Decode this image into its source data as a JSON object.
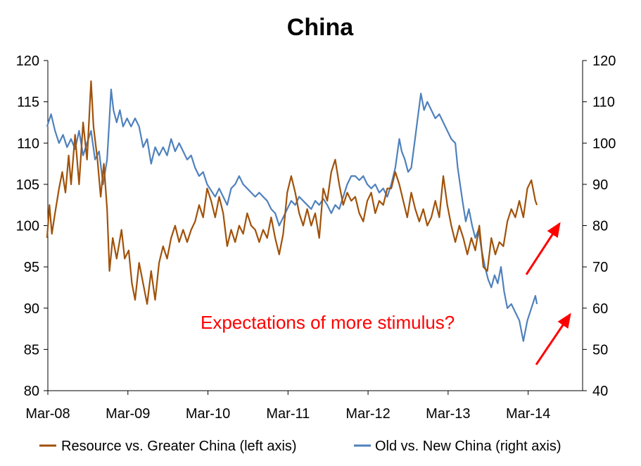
{
  "chart_data": {
    "type": "line",
    "title": "China",
    "x_labels": [
      "Mar-08",
      "Mar-09",
      "Mar-10",
      "Mar-11",
      "Mar-12",
      "Mar-13",
      "Mar-14"
    ],
    "y_left": {
      "min": 80,
      "max": 120,
      "step": 5,
      "ticks": [
        "80",
        "85",
        "90",
        "95",
        "100",
        "105",
        "110",
        "115",
        "120"
      ]
    },
    "y_right": {
      "min": 40,
      "max": 120,
      "step": 10,
      "ticks": [
        "40",
        "50",
        "60",
        "70",
        "80",
        "90",
        "100",
        "110",
        "120"
      ]
    },
    "grid": false,
    "legend_position": "bottom",
    "annotation": "Expectations of more stimulus?",
    "colors": {
      "resource": "#a0520a",
      "oldnew": "#4f81bd",
      "annotation": "#ff0000",
      "axis": "#000000"
    },
    "series": [
      {
        "name": "Resource vs. Greater China (left axis)",
        "axis": "left",
        "points": [
          [
            2008.15,
            98.5
          ],
          [
            2008.18,
            102.5
          ],
          [
            2008.21,
            99.0
          ],
          [
            2008.25,
            101.5
          ],
          [
            2008.3,
            104.5
          ],
          [
            2008.34,
            106.5
          ],
          [
            2008.38,
            104.0
          ],
          [
            2008.42,
            108.5
          ],
          [
            2008.45,
            105.0
          ],
          [
            2008.5,
            111.0
          ],
          [
            2008.55,
            105.0
          ],
          [
            2008.6,
            112.5
          ],
          [
            2008.65,
            108.0
          ],
          [
            2008.7,
            117.5
          ],
          [
            2008.73,
            112.0
          ],
          [
            2008.78,
            108.0
          ],
          [
            2008.82,
            103.5
          ],
          [
            2008.86,
            107.5
          ],
          [
            2008.9,
            102.0
          ],
          [
            2008.93,
            94.5
          ],
          [
            2008.97,
            98.5
          ],
          [
            2009.02,
            96.0
          ],
          [
            2009.08,
            99.5
          ],
          [
            2009.12,
            96.0
          ],
          [
            2009.17,
            97.0
          ],
          [
            2009.21,
            93.0
          ],
          [
            2009.25,
            91.0
          ],
          [
            2009.3,
            95.5
          ],
          [
            2009.35,
            93.0
          ],
          [
            2009.4,
            90.5
          ],
          [
            2009.45,
            94.5
          ],
          [
            2009.5,
            91.0
          ],
          [
            2009.55,
            95.5
          ],
          [
            2009.6,
            97.5
          ],
          [
            2009.65,
            96.0
          ],
          [
            2009.7,
            98.5
          ],
          [
            2009.75,
            100.0
          ],
          [
            2009.8,
            98.0
          ],
          [
            2009.85,
            99.5
          ],
          [
            2009.9,
            98.0
          ],
          [
            2009.95,
            99.5
          ],
          [
            2010.0,
            100.5
          ],
          [
            2010.05,
            102.5
          ],
          [
            2010.1,
            101.0
          ],
          [
            2010.15,
            104.5
          ],
          [
            2010.2,
            103.0
          ],
          [
            2010.25,
            101.0
          ],
          [
            2010.3,
            103.5
          ],
          [
            2010.35,
            101.5
          ],
          [
            2010.4,
            97.5
          ],
          [
            2010.45,
            99.5
          ],
          [
            2010.5,
            98.0
          ],
          [
            2010.55,
            100.0
          ],
          [
            2010.6,
            99.0
          ],
          [
            2010.65,
            101.5
          ],
          [
            2010.7,
            100.0
          ],
          [
            2010.75,
            99.5
          ],
          [
            2010.8,
            98.0
          ],
          [
            2010.85,
            99.5
          ],
          [
            2010.9,
            98.5
          ],
          [
            2010.95,
            101.0
          ],
          [
            2011.0,
            98.5
          ],
          [
            2011.05,
            96.5
          ],
          [
            2011.1,
            99.0
          ],
          [
            2011.15,
            104.0
          ],
          [
            2011.2,
            106.0
          ],
          [
            2011.25,
            104.0
          ],
          [
            2011.3,
            101.5
          ],
          [
            2011.35,
            100.0
          ],
          [
            2011.4,
            102.0
          ],
          [
            2011.45,
            100.0
          ],
          [
            2011.5,
            101.5
          ],
          [
            2011.55,
            98.5
          ],
          [
            2011.6,
            104.5
          ],
          [
            2011.65,
            103.0
          ],
          [
            2011.7,
            106.5
          ],
          [
            2011.75,
            108.0
          ],
          [
            2011.8,
            105.0
          ],
          [
            2011.85,
            102.5
          ],
          [
            2011.9,
            104.0
          ],
          [
            2011.95,
            103.0
          ],
          [
            2012.0,
            103.5
          ],
          [
            2012.05,
            101.5
          ],
          [
            2012.1,
            100.5
          ],
          [
            2012.15,
            103.0
          ],
          [
            2012.2,
            104.0
          ],
          [
            2012.25,
            101.5
          ],
          [
            2012.3,
            103.0
          ],
          [
            2012.35,
            102.5
          ],
          [
            2012.4,
            104.5
          ],
          [
            2012.45,
            104.5
          ],
          [
            2012.5,
            106.5
          ],
          [
            2012.55,
            105.0
          ],
          [
            2012.6,
            103.0
          ],
          [
            2012.65,
            101.0
          ],
          [
            2012.7,
            104.0
          ],
          [
            2012.75,
            102.0
          ],
          [
            2012.8,
            100.5
          ],
          [
            2012.85,
            102.0
          ],
          [
            2012.9,
            100.0
          ],
          [
            2012.95,
            101.0
          ],
          [
            2013.0,
            103.0
          ],
          [
            2013.05,
            101.0
          ],
          [
            2013.1,
            106.0
          ],
          [
            2013.15,
            102.5
          ],
          [
            2013.2,
            100.0
          ],
          [
            2013.25,
            98.0
          ],
          [
            2013.3,
            100.0
          ],
          [
            2013.35,
            98.5
          ],
          [
            2013.4,
            96.5
          ],
          [
            2013.45,
            98.5
          ],
          [
            2013.5,
            97.0
          ],
          [
            2013.55,
            100.0
          ],
          [
            2013.6,
            95.0
          ],
          [
            2013.65,
            94.5
          ],
          [
            2013.7,
            98.5
          ],
          [
            2013.75,
            96.5
          ],
          [
            2013.8,
            98.0
          ],
          [
            2013.85,
            97.5
          ],
          [
            2013.9,
            100.5
          ],
          [
            2013.95,
            102.0
          ],
          [
            2014.0,
            101.0
          ],
          [
            2014.05,
            103.0
          ],
          [
            2014.1,
            101.0
          ],
          [
            2014.15,
            104.5
          ],
          [
            2014.2,
            105.5
          ],
          [
            2014.25,
            103.0
          ],
          [
            2014.27,
            102.5
          ]
        ]
      },
      {
        "name": "Old vs. New China (right axis)",
        "axis": "right",
        "points": [
          [
            2008.15,
            104.0
          ],
          [
            2008.2,
            107.0
          ],
          [
            2008.25,
            103.0
          ],
          [
            2008.3,
            100.0
          ],
          [
            2008.35,
            102.0
          ],
          [
            2008.4,
            99.0
          ],
          [
            2008.45,
            101.0
          ],
          [
            2008.5,
            98.5
          ],
          [
            2008.55,
            103.0
          ],
          [
            2008.6,
            97.0
          ],
          [
            2008.65,
            100.0
          ],
          [
            2008.7,
            103.0
          ],
          [
            2008.75,
            96.0
          ],
          [
            2008.8,
            98.0
          ],
          [
            2008.85,
            90.0
          ],
          [
            2008.9,
            96.0
          ],
          [
            2008.93,
            106.0
          ],
          [
            2008.95,
            113.0
          ],
          [
            2008.98,
            108.0
          ],
          [
            2009.02,
            105.0
          ],
          [
            2009.06,
            108.0
          ],
          [
            2009.1,
            104.0
          ],
          [
            2009.15,
            106.0
          ],
          [
            2009.2,
            104.0
          ],
          [
            2009.25,
            106.0
          ],
          [
            2009.3,
            104.0
          ],
          [
            2009.35,
            99.0
          ],
          [
            2009.4,
            101.0
          ],
          [
            2009.45,
            95.0
          ],
          [
            2009.5,
            99.0
          ],
          [
            2009.55,
            97.0
          ],
          [
            2009.6,
            99.0
          ],
          [
            2009.65,
            97.0
          ],
          [
            2009.7,
            101.0
          ],
          [
            2009.75,
            98.0
          ],
          [
            2009.8,
            100.0
          ],
          [
            2009.85,
            98.0
          ],
          [
            2009.9,
            96.0
          ],
          [
            2009.95,
            97.0
          ],
          [
            2010.0,
            94.0
          ],
          [
            2010.05,
            92.0
          ],
          [
            2010.1,
            93.0
          ],
          [
            2010.15,
            90.0
          ],
          [
            2010.2,
            88.5
          ],
          [
            2010.25,
            87.0
          ],
          [
            2010.3,
            89.0
          ],
          [
            2010.35,
            87.0
          ],
          [
            2010.4,
            85.0
          ],
          [
            2010.45,
            89.0
          ],
          [
            2010.5,
            90.0
          ],
          [
            2010.55,
            92.0
          ],
          [
            2010.6,
            90.0
          ],
          [
            2010.65,
            89.0
          ],
          [
            2010.7,
            88.0
          ],
          [
            2010.75,
            87.0
          ],
          [
            2010.8,
            88.0
          ],
          [
            2010.85,
            87.0
          ],
          [
            2010.9,
            86.0
          ],
          [
            2010.95,
            84.0
          ],
          [
            2011.0,
            83.0
          ],
          [
            2011.05,
            80.0
          ],
          [
            2011.1,
            82.0
          ],
          [
            2011.15,
            84.0
          ],
          [
            2011.2,
            86.0
          ],
          [
            2011.25,
            85.0
          ],
          [
            2011.3,
            87.0
          ],
          [
            2011.35,
            86.0
          ],
          [
            2011.4,
            85.0
          ],
          [
            2011.45,
            84.0
          ],
          [
            2011.5,
            86.0
          ],
          [
            2011.55,
            85.0
          ],
          [
            2011.6,
            86.5
          ],
          [
            2011.65,
            85.0
          ],
          [
            2011.7,
            83.0
          ],
          [
            2011.75,
            85.0
          ],
          [
            2011.8,
            84.0
          ],
          [
            2011.85,
            87.0
          ],
          [
            2011.9,
            90.0
          ],
          [
            2011.95,
            92.0
          ],
          [
            2012.0,
            92.0
          ],
          [
            2012.05,
            91.0
          ],
          [
            2012.1,
            92.0
          ],
          [
            2012.15,
            90.0
          ],
          [
            2012.2,
            89.0
          ],
          [
            2012.25,
            90.0
          ],
          [
            2012.3,
            88.0
          ],
          [
            2012.35,
            89.0
          ],
          [
            2012.4,
            87.0
          ],
          [
            2012.45,
            90.0
          ],
          [
            2012.5,
            94.0
          ],
          [
            2012.55,
            101.0
          ],
          [
            2012.58,
            98.0
          ],
          [
            2012.62,
            96.0
          ],
          [
            2012.66,
            93.0
          ],
          [
            2012.7,
            94.0
          ],
          [
            2012.74,
            100.0
          ],
          [
            2012.78,
            106.0
          ],
          [
            2012.82,
            112.0
          ],
          [
            2012.86,
            108.0
          ],
          [
            2012.9,
            110.0
          ],
          [
            2012.95,
            108.0
          ],
          [
            2013.0,
            106.0
          ],
          [
            2013.05,
            107.0
          ],
          [
            2013.1,
            105.0
          ],
          [
            2013.15,
            103.0
          ],
          [
            2013.2,
            101.0
          ],
          [
            2013.25,
            100.0
          ],
          [
            2013.28,
            94.0
          ],
          [
            2013.31,
            90.0
          ],
          [
            2013.34,
            86.0
          ],
          [
            2013.38,
            81.0
          ],
          [
            2013.42,
            84.0
          ],
          [
            2013.46,
            80.0
          ],
          [
            2013.5,
            77.0
          ],
          [
            2013.54,
            79.0
          ],
          [
            2013.58,
            74.0
          ],
          [
            2013.62,
            70.0
          ],
          [
            2013.66,
            67.0
          ],
          [
            2013.7,
            65.0
          ],
          [
            2013.74,
            68.0
          ],
          [
            2013.78,
            66.0
          ],
          [
            2013.82,
            70.0
          ],
          [
            2013.86,
            64.0
          ],
          [
            2013.9,
            60.0
          ],
          [
            2013.95,
            61.0
          ],
          [
            2014.0,
            59.0
          ],
          [
            2014.05,
            57.0
          ],
          [
            2014.1,
            52.0
          ],
          [
            2014.15,
            57.0
          ],
          [
            2014.2,
            60.0
          ],
          [
            2014.25,
            63.0
          ],
          [
            2014.27,
            61.0
          ]
        ]
      }
    ]
  }
}
